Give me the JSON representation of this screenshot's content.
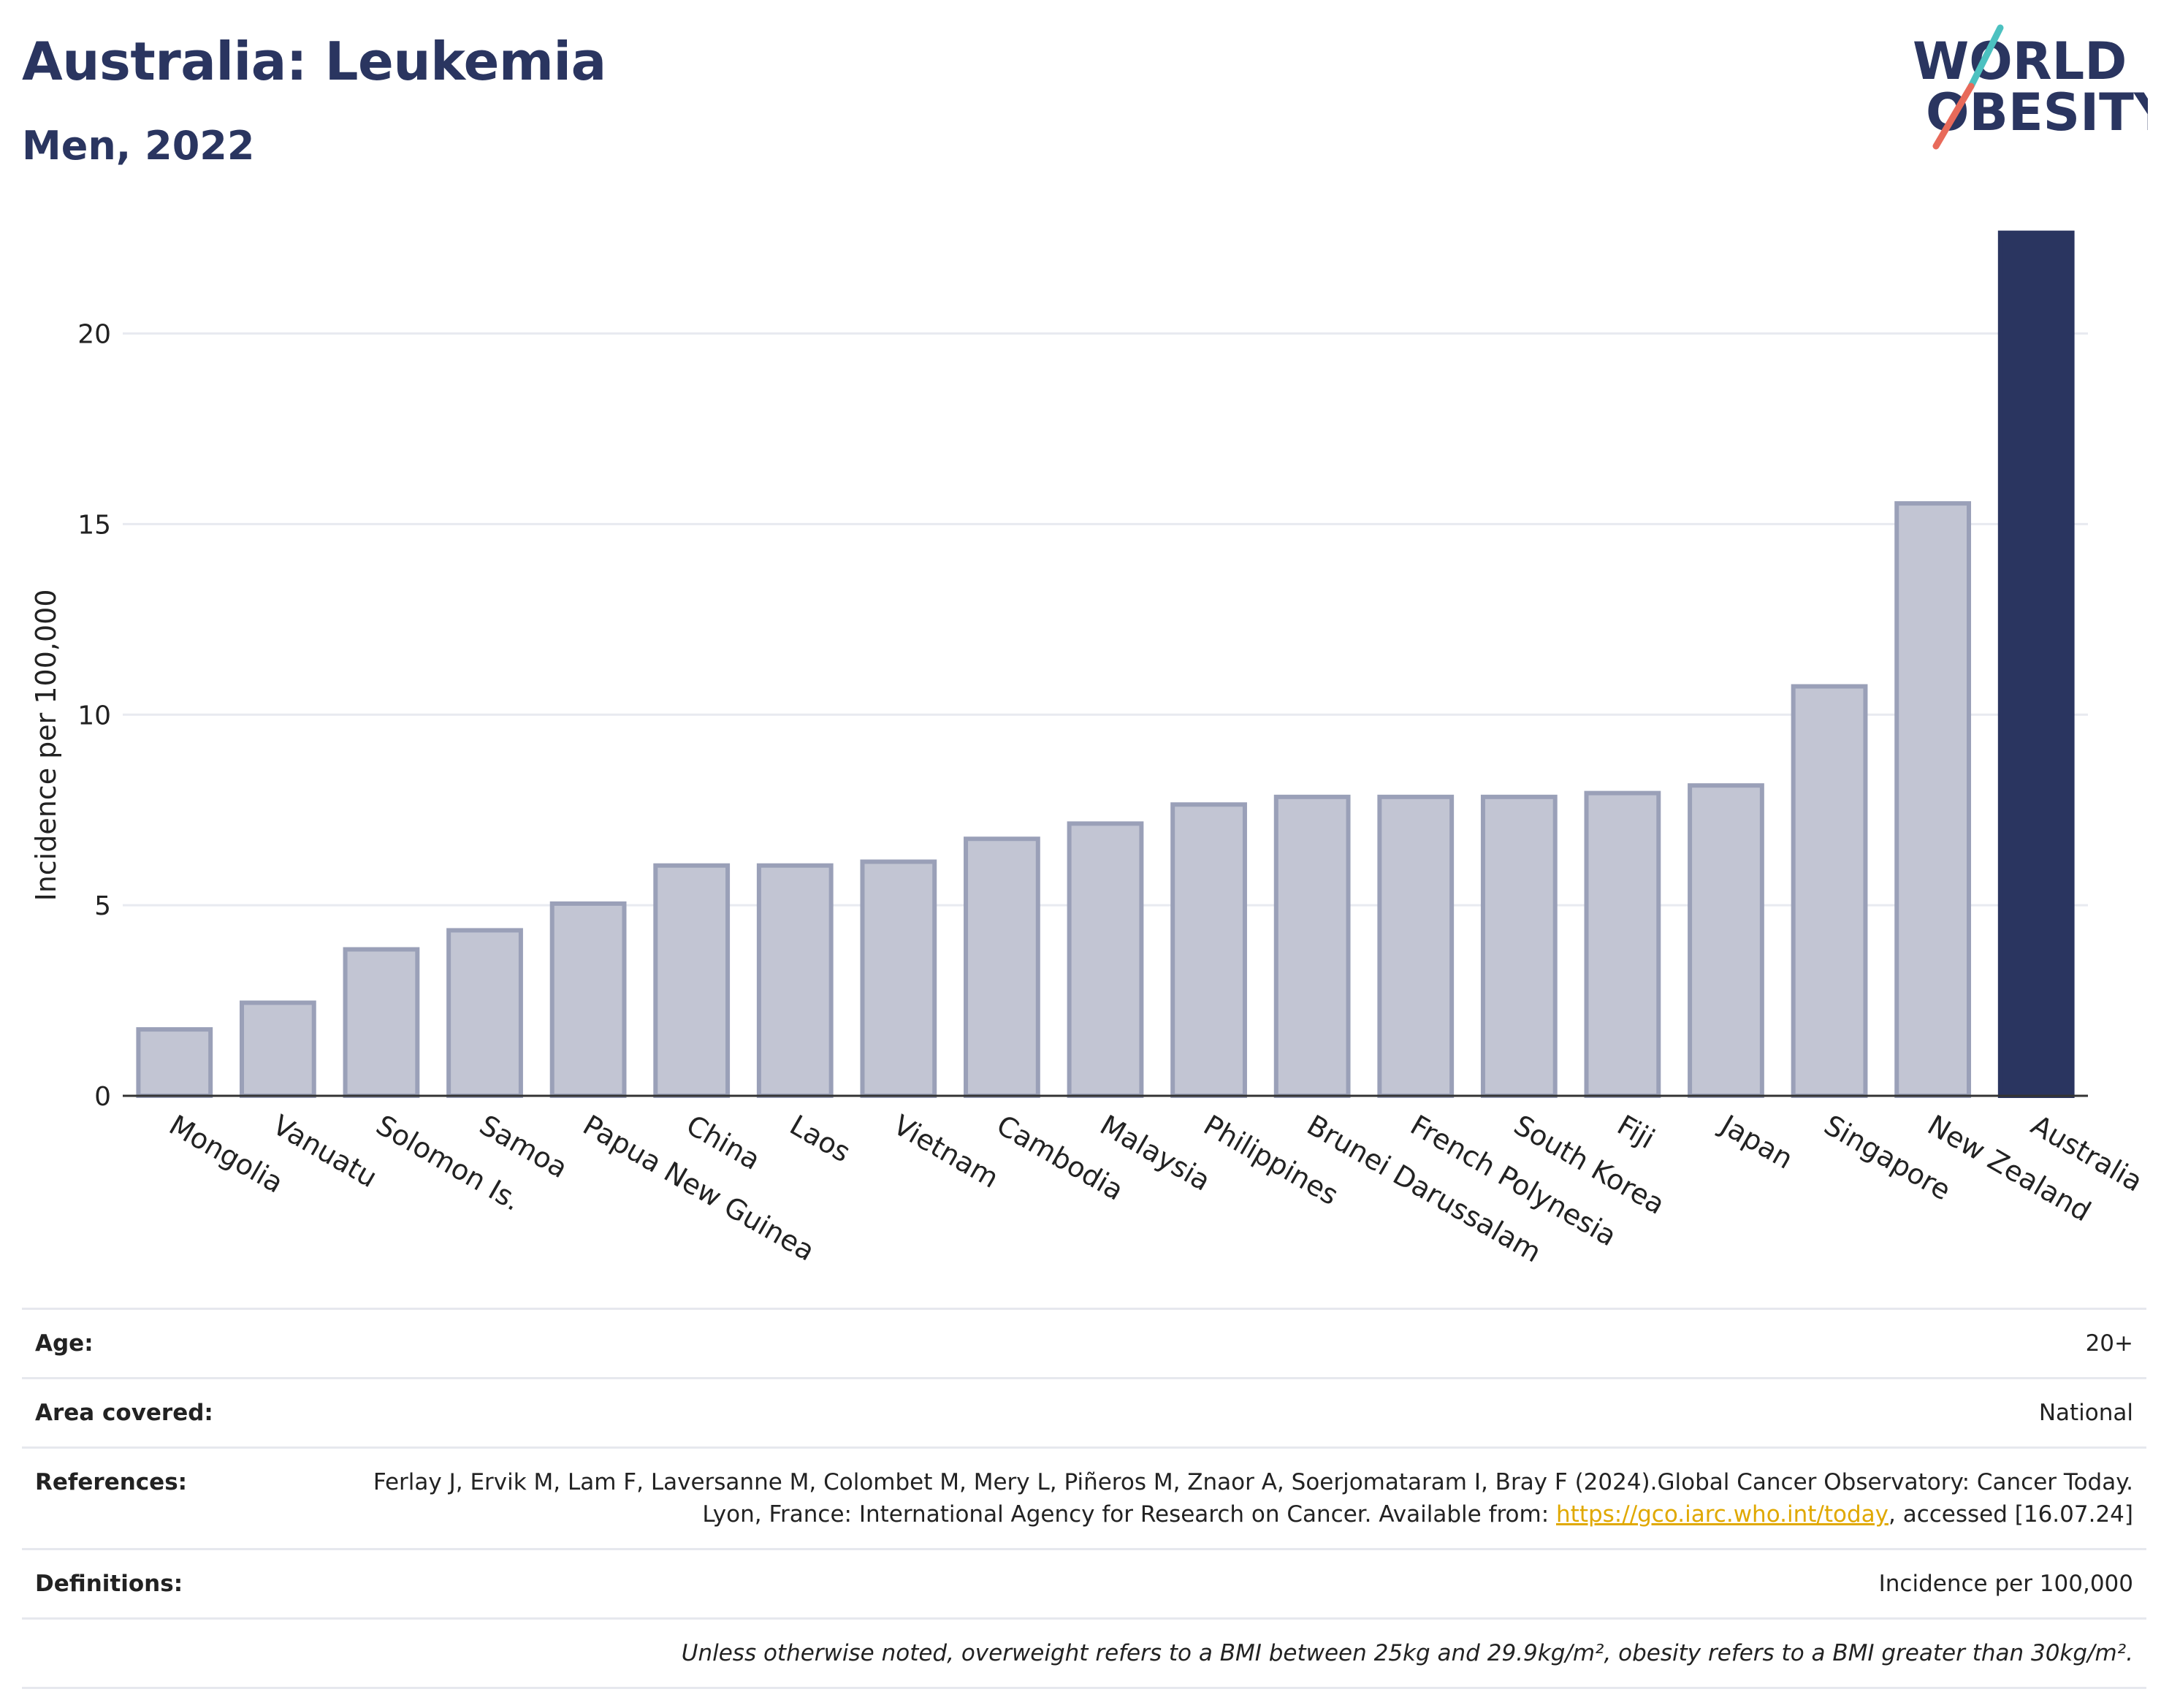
{
  "header": {
    "title": "Australia: Leukemia",
    "subtitle": "Men, 2022"
  },
  "logo": {
    "line1": "WORLD",
    "line2": "OBESITY",
    "slash_colors": [
      "#4cc1c0",
      "#e86a5a"
    ]
  },
  "chart_data": {
    "type": "bar",
    "categories": [
      "Mongolia",
      "Vanuatu",
      "Solomon Is.",
      "Samoa",
      "Papua New Guinea",
      "China",
      "Laos",
      "Vietnam",
      "Cambodia",
      "Malaysia",
      "Philippines",
      "Brunei Darussalam",
      "French Polynesia",
      "South Korea",
      "Fiji",
      "Japan",
      "Singapore",
      "New Zealand",
      "Australia"
    ],
    "values": [
      1.8,
      2.5,
      3.9,
      4.4,
      5.1,
      6.1,
      6.1,
      6.2,
      6.8,
      7.2,
      7.7,
      7.9,
      7.9,
      7.9,
      8.0,
      8.2,
      10.8,
      15.6,
      22.7
    ],
    "highlight": "Australia",
    "ylabel": "Incidence per 100,000",
    "ylim": [
      0,
      23
    ],
    "yticks": [
      0,
      5,
      10,
      15,
      20
    ],
    "grid": true,
    "colors": {
      "bar": "#c2c5d3",
      "bar_border": "#9aa0b8",
      "highlight": "#2a3560",
      "grid": "#e8eaf0",
      "axis": "#333333"
    }
  },
  "meta": {
    "age_label": "Age:",
    "age_value": "20+",
    "area_label": "Area covered:",
    "area_value": "National",
    "references_label": "References:",
    "references_text": "Ferlay J, Ervik M, Lam F, Laversanne M, Colombet M, Mery L, Piñeros M, Znaor A, Soerjomataram I, Bray F (2024).Global Cancer Observatory: Cancer Today. Lyon, France: International Agency for Research on Cancer. Available from: ",
    "references_link": "https://gco.iarc.who.int/today",
    "references_tail": ", accessed [16.07.24]",
    "definitions_label": "Definitions:",
    "definitions_value": "Incidence per 100,000",
    "note": "Unless otherwise noted, overweight refers to a BMI between 25kg and 29.9kg/m², obesity refers to a BMI greater than 30kg/m²."
  }
}
